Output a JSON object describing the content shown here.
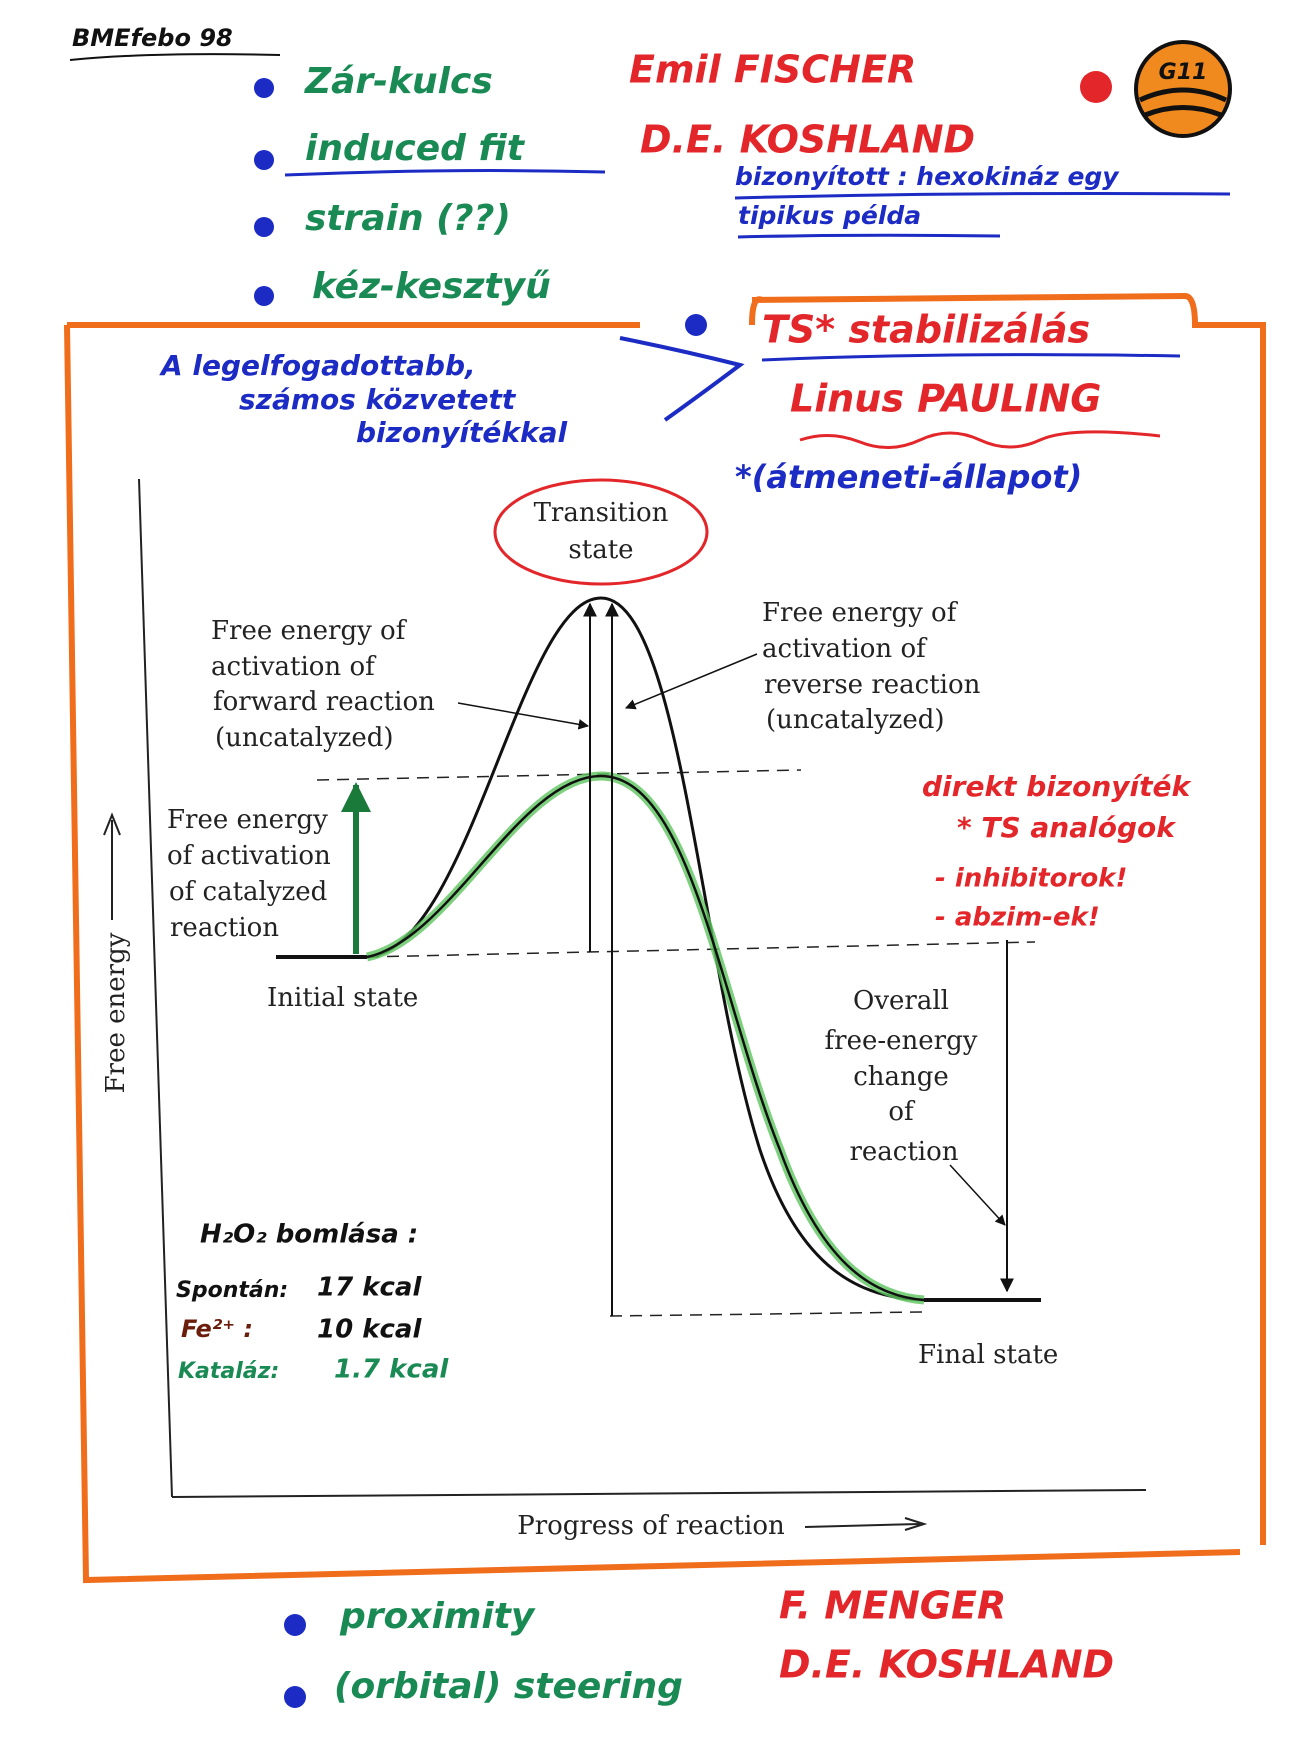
{
  "header": {
    "tag": "BMEfebo 98",
    "badge": "G11"
  },
  "mechanisms": [
    {
      "label": "Zár-kulcs",
      "author": "Emil FISCHER"
    },
    {
      "label": "induced fit",
      "author": "D.E. KOSHLAND",
      "note": [
        "bizonyított : hexokináz egy",
        "tipikus példa"
      ]
    },
    {
      "label": "strain (??)"
    },
    {
      "label": "kéz-kesztyű"
    },
    {
      "label": "TS* stabilizálás",
      "author": "Linus PAULING",
      "note": [
        "*(átmeneti-állapot)"
      ],
      "comment": [
        "A legelfogadottabb,",
        "számos közvetett",
        "bizonyítékkal"
      ]
    }
  ],
  "diagram": {
    "transition_state": [
      "Transition",
      "state"
    ],
    "forward": [
      "Free energy of",
      "activation of",
      "forward reaction",
      "(uncatalyzed)"
    ],
    "reverse": [
      "Free energy of",
      "activation of",
      "reverse reaction",
      "(uncatalyzed)"
    ],
    "catalyzed": [
      "Free energy",
      "of activation",
      "of catalyzed",
      "reaction"
    ],
    "initial_state": "Initial state",
    "final_state": "Final state",
    "overall": [
      "Overall",
      "free-energy",
      "change",
      "of",
      "reaction"
    ],
    "y_axis": "Free energy",
    "x_axis": "Progress of reaction"
  },
  "evidence": [
    "direkt bizonyíték",
    "* TS analógok",
    "- inhibitorok!",
    "- abzim-ek!"
  ],
  "h2o2": {
    "title": "H₂O₂ bomlása :",
    "rows": [
      [
        "Spontán:",
        "17 kcal"
      ],
      [
        "Fe²⁺ :",
        "10 kcal"
      ],
      [
        "Kataláz:",
        "1.7 kcal"
      ]
    ]
  },
  "extra": [
    {
      "label": "proximity",
      "author": "F. MENGER"
    },
    {
      "label": "(orbital) steering",
      "author": "D.E. KOSHLAND"
    }
  ]
}
